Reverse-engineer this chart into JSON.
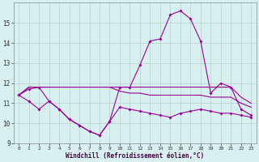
{
  "hours": [
    0,
    1,
    2,
    3,
    4,
    5,
    6,
    7,
    8,
    9,
    10,
    11,
    12,
    13,
    14,
    15,
    16,
    17,
    18,
    19,
    20,
    21,
    22,
    23
  ],
  "windchill": [
    11.4,
    11.7,
    11.8,
    11.1,
    10.7,
    10.2,
    9.9,
    9.6,
    9.4,
    10.1,
    11.8,
    11.8,
    12.9,
    14.1,
    14.2,
    15.4,
    15.6,
    15.2,
    14.1,
    11.5,
    12.0,
    11.8,
    10.7,
    10.4
  ],
  "upper_flat": [
    11.4,
    11.8,
    11.8,
    11.8,
    11.8,
    11.8,
    11.8,
    11.8,
    11.8,
    11.8,
    11.8,
    11.8,
    11.8,
    11.8,
    11.8,
    11.8,
    11.8,
    11.8,
    11.8,
    11.8,
    11.8,
    11.8,
    11.3,
    11.0
  ],
  "mid_flat": [
    11.4,
    11.8,
    11.8,
    11.8,
    11.8,
    11.8,
    11.8,
    11.8,
    11.8,
    11.8,
    11.6,
    11.5,
    11.5,
    11.4,
    11.4,
    11.4,
    11.4,
    11.4,
    11.4,
    11.3,
    11.3,
    11.3,
    11.0,
    10.8
  ],
  "lower_line": [
    11.4,
    11.1,
    10.7,
    11.1,
    10.7,
    10.2,
    9.9,
    9.6,
    9.4,
    10.1,
    10.8,
    10.7,
    10.6,
    10.5,
    10.4,
    10.3,
    10.5,
    10.6,
    10.7,
    10.6,
    10.5,
    10.5,
    10.4,
    10.3
  ],
  "line_color": "#990099",
  "bg_color": "#d8f0f0",
  "grid_color": "#b8d0d0",
  "xlabel": "Windchill (Refroidissement éolien,°C)",
  "ylim": [
    9,
    16
  ],
  "xlim": [
    -0.5,
    23.5
  ],
  "yticks": [
    9,
    10,
    11,
    12,
    13,
    14,
    15
  ],
  "xticks": [
    0,
    1,
    2,
    3,
    4,
    5,
    6,
    7,
    8,
    9,
    10,
    11,
    12,
    13,
    14,
    15,
    16,
    17,
    18,
    19,
    20,
    21,
    22,
    23
  ]
}
